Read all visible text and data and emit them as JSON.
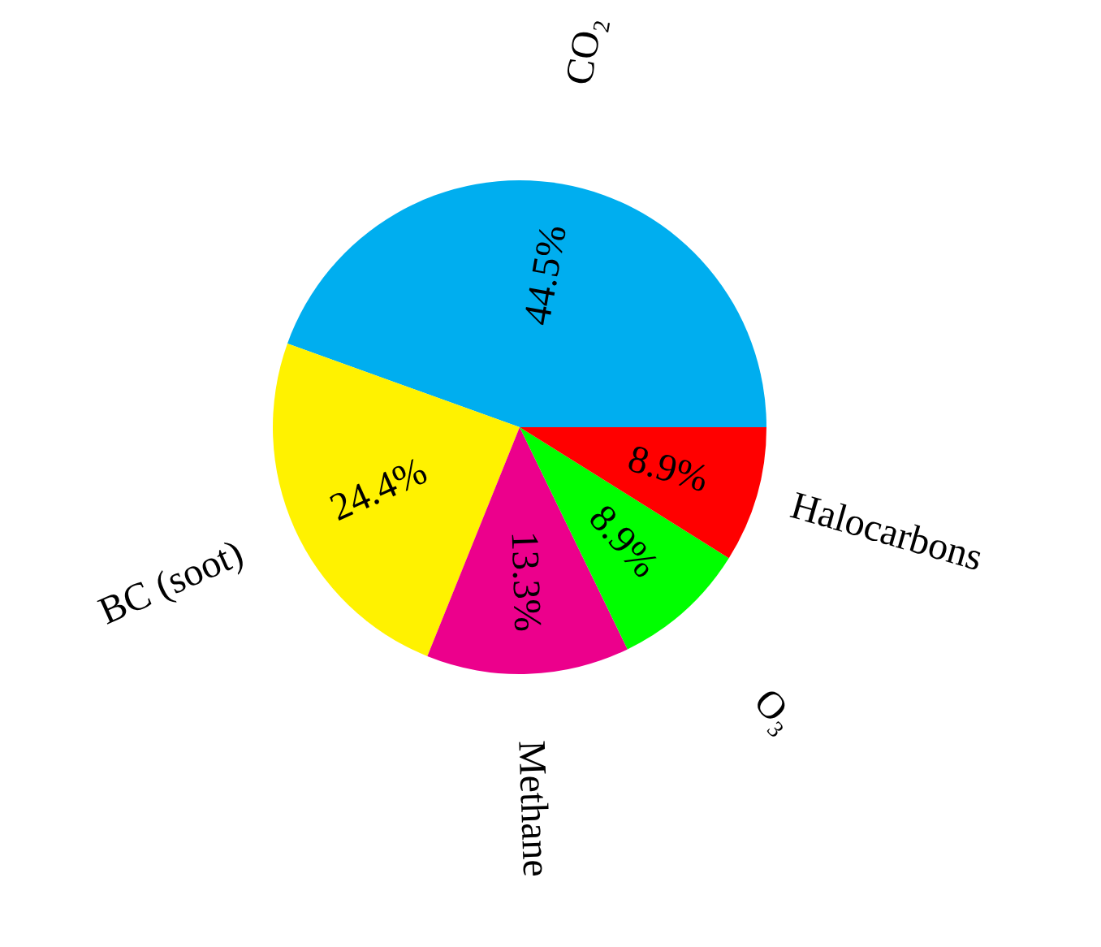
{
  "chart_data": {
    "type": "pie",
    "categories": [
      "CO₂",
      "BC (soot)",
      "Methane",
      "O₃",
      "Halocarbons"
    ],
    "values": [
      44.5,
      24.4,
      13.3,
      8.9,
      8.9
    ],
    "colors": [
      "#00aeef",
      "#fff200",
      "#ec008c",
      "#00ff00",
      "#ff0000"
    ],
    "value_labels": [
      "44.5%",
      "24.4%",
      "13.3%",
      "8.9%",
      "8.9%"
    ]
  }
}
